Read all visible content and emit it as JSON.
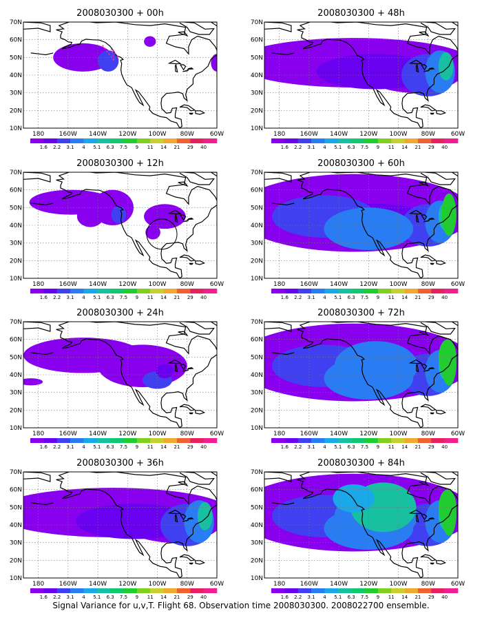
{
  "caption": "Signal Variance for u,v,T. Flight 68. Observation time 2008030300. 2008022700 ensemble.",
  "map_extent": {
    "lon_min": -190,
    "lon_max": -60,
    "lat_min": 10,
    "lat_max": 70
  },
  "lat_ticks": [
    "10N",
    "20N",
    "30N",
    "40N",
    "50N",
    "60N",
    "70N"
  ],
  "lon_ticks": [
    "180",
    "160W",
    "140W",
    "120W",
    "100W",
    "80W",
    "60W"
  ],
  "legend": {
    "labels": [
      "1.6",
      "2.2",
      "3.1",
      "4",
      "5.1",
      "6.3",
      "7.5",
      "9",
      "11",
      "14",
      "21",
      "29",
      "40"
    ],
    "colors": [
      "#8800ee",
      "#6a00f0",
      "#4040f0",
      "#2a7cf2",
      "#1aa8e8",
      "#16c0a0",
      "#10c870",
      "#20cc30",
      "#80d020",
      "#c8d030",
      "#f0a830",
      "#f06030",
      "#e82060",
      "#f02090"
    ]
  },
  "panels": [
    {
      "title": "2008030300 + 00h"
    },
    {
      "title": "2008030300 + 48h"
    },
    {
      "title": "2008030300 + 12h"
    },
    {
      "title": "2008030300 + 60h"
    },
    {
      "title": "2008030300 + 24h"
    },
    {
      "title": "2008030300 + 72h"
    },
    {
      "title": "2008030300 + 36h"
    },
    {
      "title": "2008030300 + 84h"
    }
  ]
}
